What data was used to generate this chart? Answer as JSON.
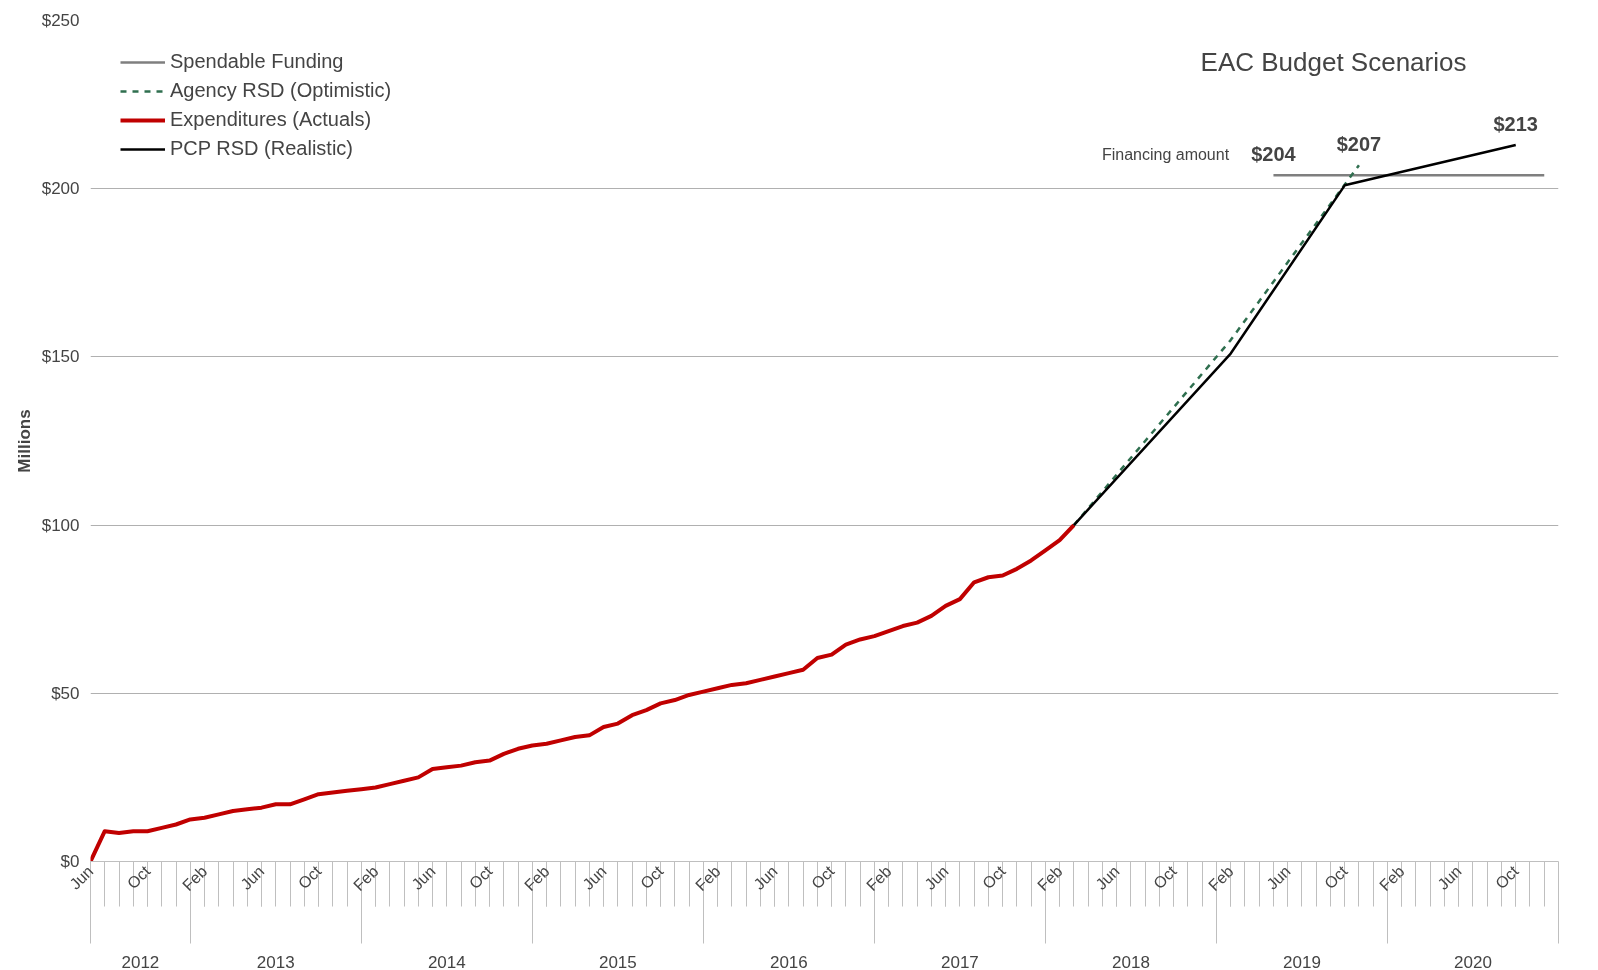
{
  "chart_data": {
    "type": "line",
    "title": "EAC Budget Scenarios",
    "ylabel": "Millions",
    "xlim": [
      "2012-06",
      "2021-01"
    ],
    "ylim": [
      0,
      250
    ],
    "yticks": [
      {
        "value": 0,
        "label": "$0"
      },
      {
        "value": 50,
        "label": "$50"
      },
      {
        "value": 100,
        "label": "$100"
      },
      {
        "value": 150,
        "label": "$150"
      },
      {
        "value": 200,
        "label": "$200"
      },
      {
        "value": 250,
        "label": "$250"
      }
    ],
    "xticks": [
      {
        "value": "2012-06",
        "label": "Jun"
      },
      {
        "value": "2012-10",
        "label": "Oct"
      },
      {
        "value": "2013-02",
        "label": "Feb"
      },
      {
        "value": "2013-06",
        "label": "Jun"
      },
      {
        "value": "2013-10",
        "label": "Oct"
      },
      {
        "value": "2014-02",
        "label": "Feb"
      },
      {
        "value": "2014-06",
        "label": "Jun"
      },
      {
        "value": "2014-10",
        "label": "Oct"
      },
      {
        "value": "2015-02",
        "label": "Feb"
      },
      {
        "value": "2015-06",
        "label": "Jun"
      },
      {
        "value": "2015-10",
        "label": "Oct"
      },
      {
        "value": "2016-02",
        "label": "Feb"
      },
      {
        "value": "2016-06",
        "label": "Jun"
      },
      {
        "value": "2016-10",
        "label": "Oct"
      },
      {
        "value": "2017-02",
        "label": "Feb"
      },
      {
        "value": "2017-06",
        "label": "Jun"
      },
      {
        "value": "2017-10",
        "label": "Oct"
      },
      {
        "value": "2018-02",
        "label": "Feb"
      },
      {
        "value": "2018-06",
        "label": "Jun"
      },
      {
        "value": "2018-10",
        "label": "Oct"
      },
      {
        "value": "2019-02",
        "label": "Feb"
      },
      {
        "value": "2019-06",
        "label": "Jun"
      },
      {
        "value": "2019-10",
        "label": "Oct"
      },
      {
        "value": "2020-02",
        "label": "Feb"
      },
      {
        "value": "2020-06",
        "label": "Jun"
      },
      {
        "value": "2020-10",
        "label": "Oct"
      }
    ],
    "grid": "y",
    "legend": "top left",
    "annotations": [
      "2012",
      "2013",
      "2014",
      "2015",
      "2016",
      "2017",
      "2018",
      "2019",
      "2020",
      {
        "text": "$204",
        "x": "2019-05",
        "y": 204
      },
      {
        "text": "$207",
        "x": "2019-11",
        "y": 207
      },
      {
        "text": "$213",
        "x": "2020-10",
        "y": 213
      },
      "Financing amount"
    ],
    "series": [
      {
        "name": "Spendable Funding",
        "color": "#7f7f7f",
        "line_style": "solid",
        "x": [
          "2019-05",
          "2020-12"
        ],
        "values": [
          204,
          204
        ]
      },
      {
        "name": "Agency RSD (Optimistic)",
        "color": "#2f6f4f",
        "line_style": "dashed",
        "x": [
          "2018-03",
          "2019-02",
          "2019-11"
        ],
        "values": [
          100,
          155,
          207
        ]
      },
      {
        "name": "Expenditures (Actuals)",
        "color": "#c00000",
        "line_style": "solid",
        "x": [
          "2012-06",
          "2012-07",
          "2012-08",
          "2012-09",
          "2012-10",
          "2012-11",
          "2012-12",
          "2013-01",
          "2013-02",
          "2013-03",
          "2013-04",
          "2013-05",
          "2013-06",
          "2013-07",
          "2013-08",
          "2013-09",
          "2013-10",
          "2013-11",
          "2013-12",
          "2014-01",
          "2014-02",
          "2014-03",
          "2014-04",
          "2014-05",
          "2014-06",
          "2014-07",
          "2014-08",
          "2014-09",
          "2014-10",
          "2014-11",
          "2014-12",
          "2015-01",
          "2015-02",
          "2015-03",
          "2015-04",
          "2015-05",
          "2015-06",
          "2015-07",
          "2015-08",
          "2015-09",
          "2015-10",
          "2015-11",
          "2015-12",
          "2016-01",
          "2016-02",
          "2016-03",
          "2016-04",
          "2016-05",
          "2016-06",
          "2016-07",
          "2016-08",
          "2016-09",
          "2016-10",
          "2016-11",
          "2016-12",
          "2017-01",
          "2017-02",
          "2017-03",
          "2017-04",
          "2017-05",
          "2017-06",
          "2017-07",
          "2017-08",
          "2017-09",
          "2017-10",
          "2017-11",
          "2017-12",
          "2018-01",
          "2018-02",
          "2018-03"
        ],
        "values": [
          0,
          9,
          8.5,
          9,
          9,
          10,
          11,
          12.5,
          13,
          14,
          15,
          15.5,
          16,
          17,
          17,
          18.5,
          20,
          20.5,
          21,
          21.5,
          22,
          23,
          24,
          25,
          27.5,
          28,
          28.5,
          29.5,
          30,
          32,
          33.5,
          34.5,
          35,
          36,
          37,
          37.5,
          40,
          41,
          43.5,
          45,
          47,
          48,
          49.5,
          50.5,
          51.5,
          52.5,
          53,
          54,
          55,
          56,
          57,
          60.5,
          61.5,
          64.5,
          66,
          67,
          68.5,
          70,
          71,
          73,
          76,
          78,
          83,
          84.5,
          85,
          87,
          89.5,
          92.5,
          95.5,
          100
        ]
      },
      {
        "name": "PCP RSD (Realistic)",
        "color": "#000000",
        "line_style": "solid",
        "x": [
          "2018-03",
          "2019-02",
          "2019-10",
          "2020-10"
        ],
        "values": [
          100,
          151,
          201,
          213
        ]
      }
    ]
  }
}
